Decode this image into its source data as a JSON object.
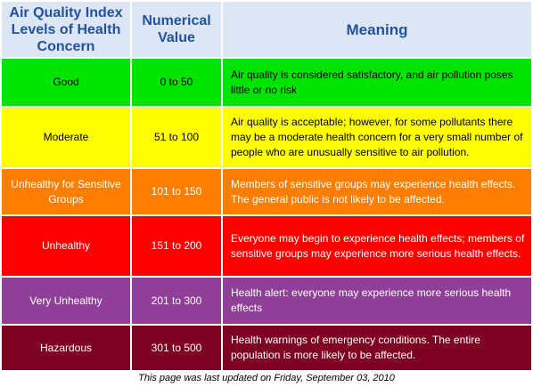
{
  "table": {
    "headers": [
      "Air Quality Index Levels of Health Concern",
      "Numerical Value",
      "Meaning"
    ],
    "rows": [
      {
        "level": "Good",
        "range": "0 to 50",
        "meaning": "Air quality is considered satisfactory, and air pollution poses little or no risk",
        "bg": "#00e400",
        "fg": "#000000"
      },
      {
        "level": "Moderate",
        "range": "51 to 100",
        "meaning": "Air quality is acceptable; however, for some pollutants there may be a moderate health concern for a very small number of people who are unusually sensitive to air pollution.",
        "bg": "#ffff00",
        "fg": "#000000"
      },
      {
        "level": "Unhealthy for Sensitive Groups",
        "range": "101 to 150",
        "meaning": "Members of sensitive groups may experience health effects. The general public is not likely to be affected.",
        "bg": "#ff7e00",
        "fg": "#ffffff"
      },
      {
        "level": "Unhealthy",
        "range": "151 to 200",
        "meaning": "Everyone may begin to experience health effects; members of sensitive groups may experience more serious health effects.",
        "bg": "#ff0000",
        "fg": "#ffffff"
      },
      {
        "level": "Very Unhealthy",
        "range": "201 to 300",
        "meaning": "Health alert: everyone may experience more serious health effects",
        "bg": "#8f3f97",
        "fg": "#ffffff"
      },
      {
        "level": "Hazardous",
        "range": "301 to 500",
        "meaning": "Health warnings of emergency conditions. The entire population is more likely to be affected.",
        "bg": "#7e0023",
        "fg": "#ffffff"
      }
    ]
  },
  "footer": "This page was last updated on Friday, September 03, 2010"
}
